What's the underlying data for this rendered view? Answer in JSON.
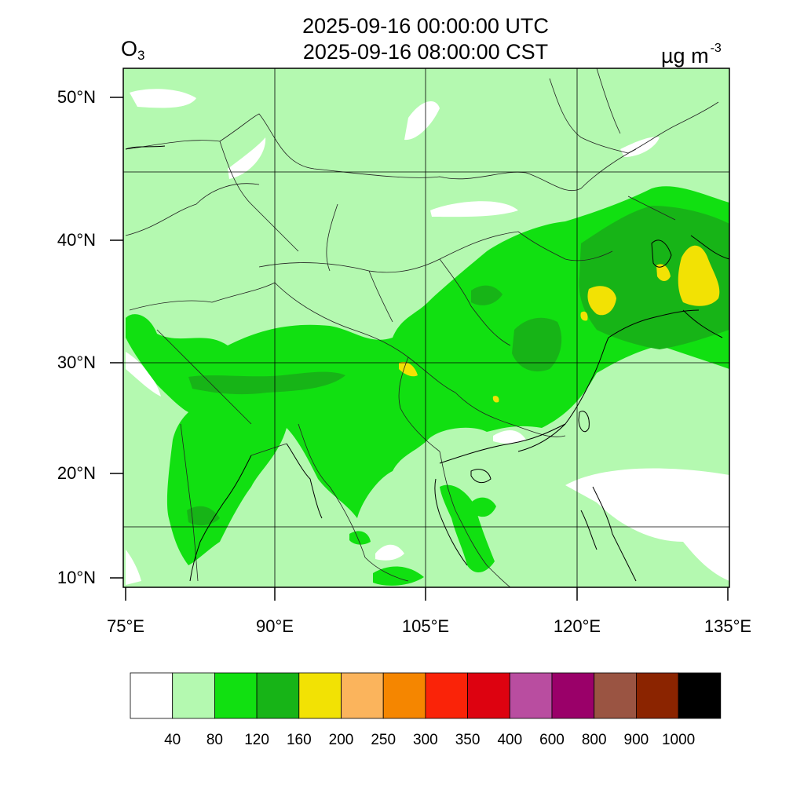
{
  "header": {
    "time_utc": "2025-09-16 00:00:00 UTC",
    "time_cst": "2025-09-16 08:00:00 CST",
    "species": "O",
    "species_sub": "3",
    "unit": "µg m",
    "unit_exp": "-3"
  },
  "map": {
    "lat_ticks": [
      "50°N",
      "40°N",
      "30°N",
      "20°N",
      "10°N"
    ],
    "lon_ticks": [
      "75°E",
      "90°E",
      "105°E",
      "120°E",
      "135°E"
    ],
    "colors": {
      "ge40": "#b4f9b0",
      "ge80": "#11e011",
      "ge120": "#17b417",
      "ge160": "#f2e204"
    }
  },
  "colorbar": {
    "colors": [
      "#ffffff",
      "#b4f9b0",
      "#11e011",
      "#17b417",
      "#f2e204",
      "#fbb45c",
      "#f58600",
      "#fa2308",
      "#dd0210",
      "#b94da0",
      "#9a0069",
      "#9a5442",
      "#8b2400",
      "#000000"
    ],
    "labels": [
      "40",
      "80",
      "120",
      "160",
      "200",
      "250",
      "300",
      "350",
      "400",
      "600",
      "800",
      "900",
      "1000"
    ]
  }
}
